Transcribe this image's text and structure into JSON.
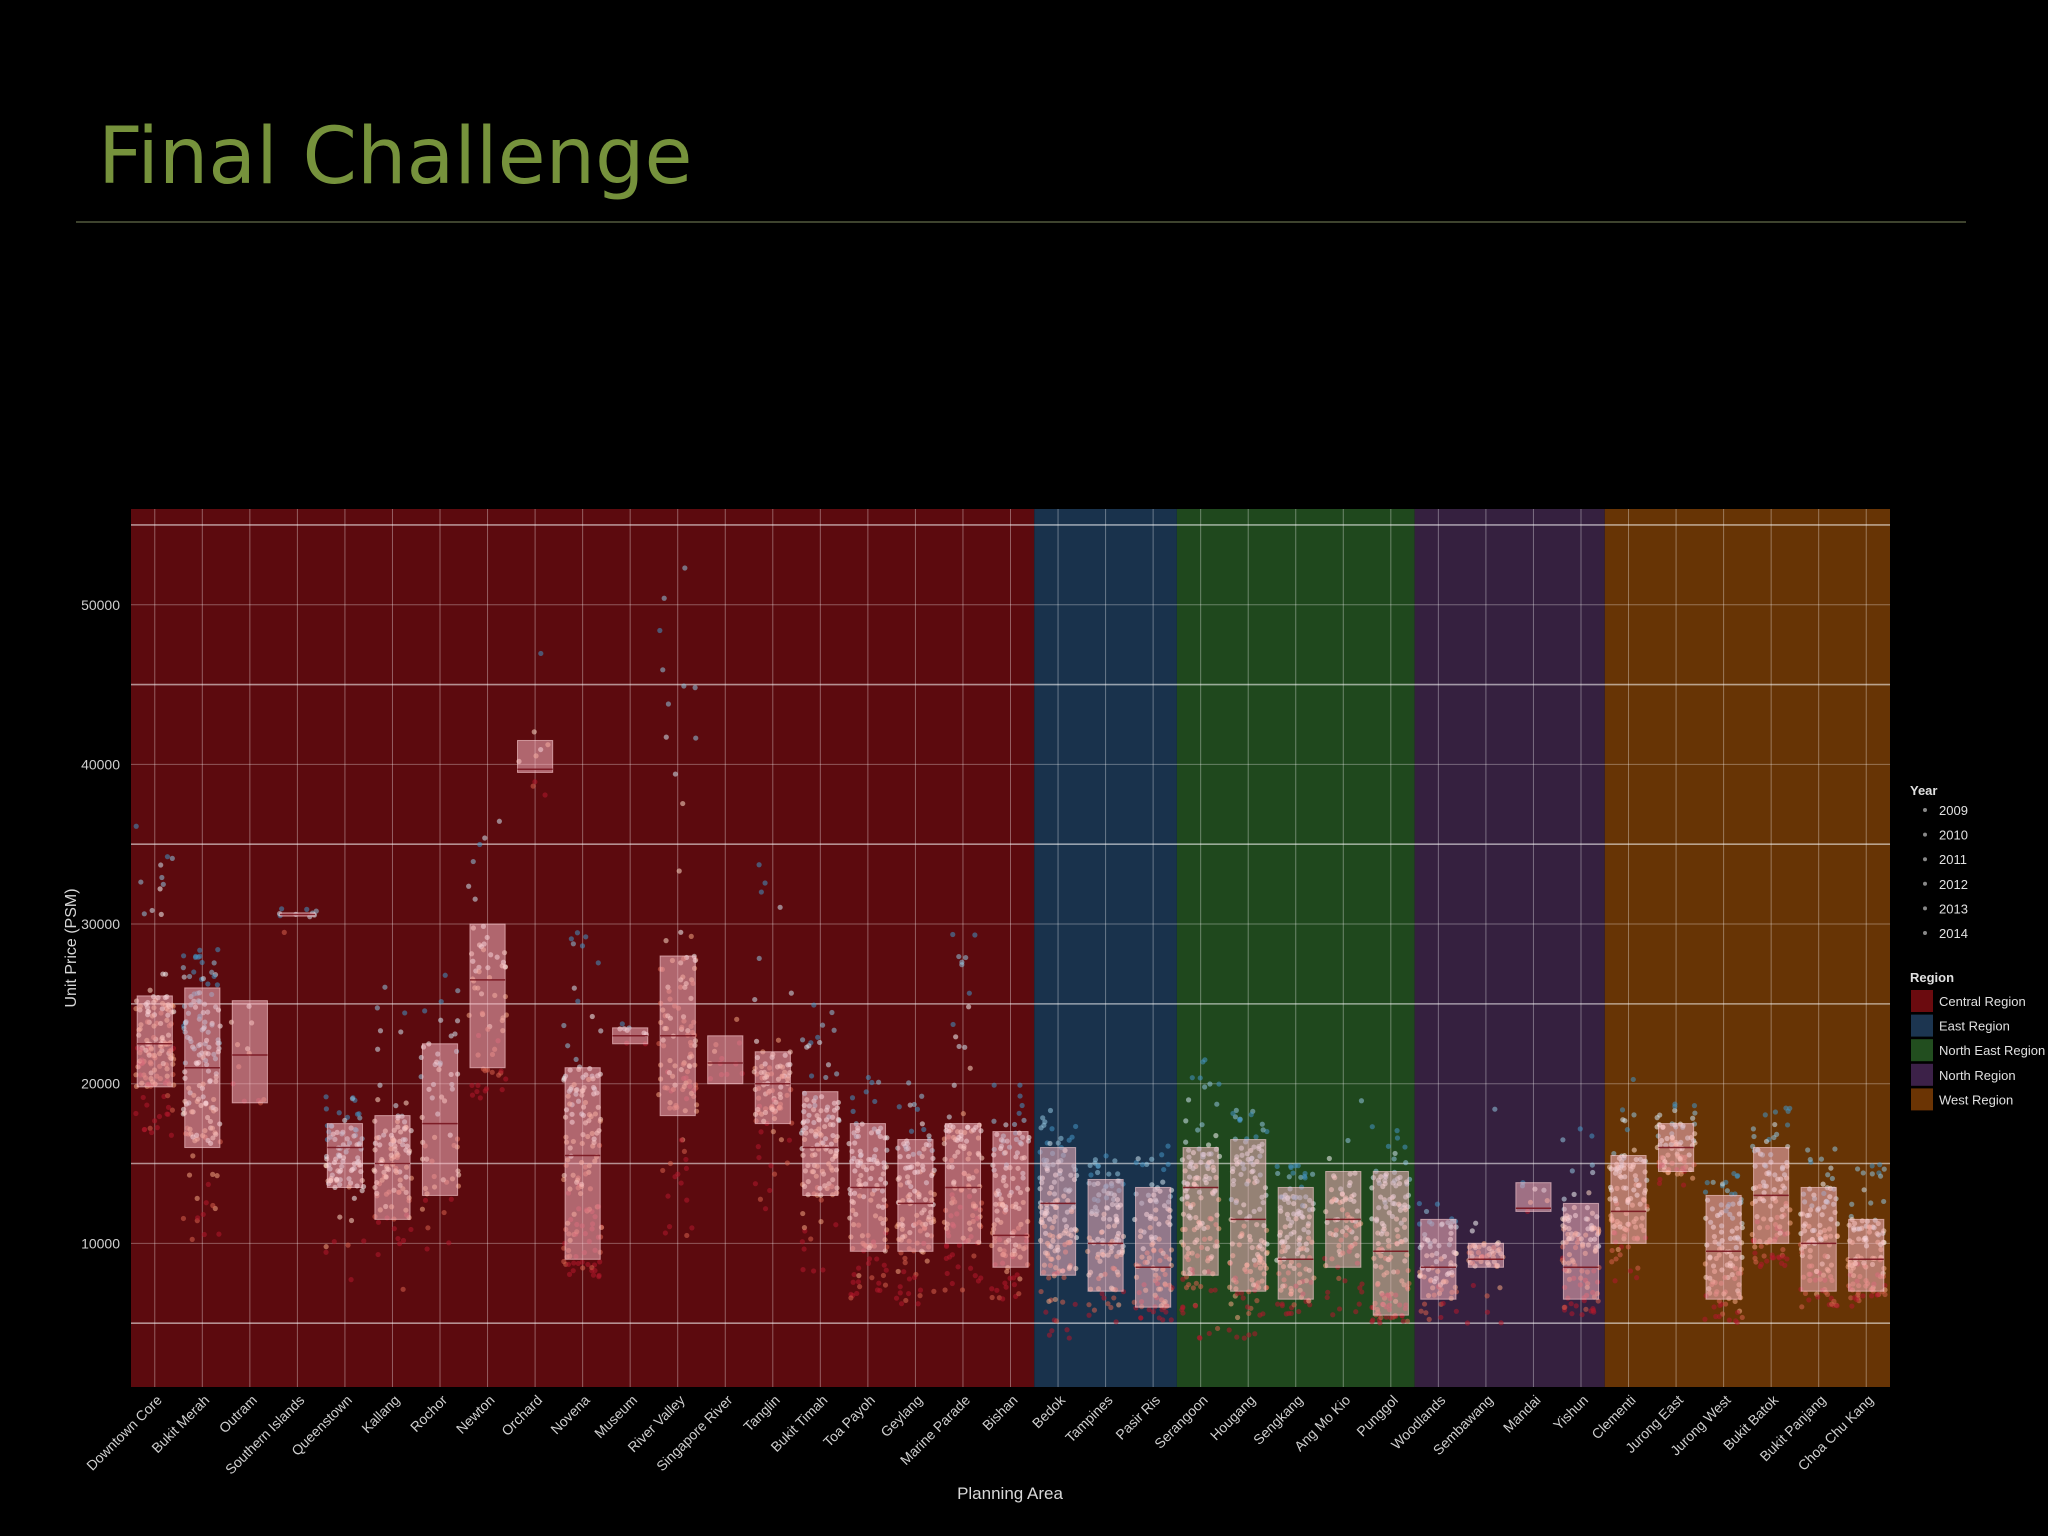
{
  "slide": {
    "title": "Final Challenge"
  },
  "chart_data": {
    "type": "scatter",
    "subtype": "jittered strip plot with box plots, shaded by region",
    "xlabel": "Planning Area",
    "ylabel": "Unit Price (PSM)",
    "ylim": [
      1000,
      56000
    ],
    "yticks": [
      10000,
      20000,
      30000,
      40000,
      50000
    ],
    "grid": true,
    "legend_position": "right",
    "legend_year": {
      "title": "Year",
      "entries": [
        "2009",
        "2010",
        "2011",
        "2012",
        "2013",
        "2014"
      ]
    },
    "legend_region": {
      "title": "Region",
      "entries": [
        {
          "name": "Central Region",
          "color": "#6b0b0f"
        },
        {
          "name": "East Region",
          "color": "#1c3550"
        },
        {
          "name": "North East Region",
          "color": "#224e1f"
        },
        {
          "name": "North Region",
          "color": "#3c2148"
        },
        {
          "name": "West Region",
          "color": "#6b3404"
        }
      ]
    },
    "region_bands": [
      {
        "name": "Central Region",
        "start": "Downtown Core",
        "end": "Bishan",
        "color": "#5c0a0e"
      },
      {
        "name": "East Region",
        "start": "Bedok",
        "end": "Pasir Ris",
        "color": "#19324c"
      },
      {
        "name": "North East Region",
        "start": "Serangoon",
        "end": "Punggol",
        "color": "#1f481d"
      },
      {
        "name": "North Region",
        "start": "Woodlands",
        "end": "Yishun",
        "color": "#35203f"
      },
      {
        "name": "West Region",
        "start": "Clementi",
        "end": "Choa Chu Kang",
        "color": "#673405"
      }
    ],
    "categories": [
      "Downtown Core",
      "Bukit Merah",
      "Outram",
      "Southern Islands",
      "Queenstown",
      "Kallang",
      "Rochor",
      "Newton",
      "Orchard",
      "Novena",
      "Museum",
      "River Valley",
      "Singapore River",
      "Tanglin",
      "Bukit Timah",
      "Toa Payoh",
      "Geylang",
      "Marine Parade",
      "Bishan",
      "Bedok",
      "Tampines",
      "Pasir Ris",
      "Serangoon",
      "Hougang",
      "Sengkang",
      "Ang Mo Kio",
      "Punggol",
      "Woodlands",
      "Sembawang",
      "Mandai",
      "Yishun",
      "Clementi",
      "Jurong East",
      "Jurong West",
      "Bukit Batok",
      "Bukit Panjang",
      "Choa Chu Kang"
    ],
    "boxes": [
      {
        "q1": 19800,
        "median": 22500,
        "q3": 25500,
        "lo": 16500,
        "hi": 36500,
        "density": 1.0
      },
      {
        "q1": 16000,
        "median": 21000,
        "q3": 26000,
        "lo": 9500,
        "hi": 28500,
        "density": 1.0
      },
      {
        "q1": 18800,
        "median": 21800,
        "q3": 25200,
        "lo": 18800,
        "hi": 27000,
        "density": 0.05
      },
      {
        "q1": 30500,
        "median": 30600,
        "q3": 30700,
        "lo": 28700,
        "hi": 31000,
        "density": 0.04
      },
      {
        "q1": 13500,
        "median": 16000,
        "q3": 17500,
        "lo": 7500,
        "hi": 19500,
        "density": 0.6
      },
      {
        "q1": 11500,
        "median": 15000,
        "q3": 18000,
        "lo": 7000,
        "hi": 26500,
        "density": 0.7
      },
      {
        "q1": 13000,
        "median": 17500,
        "q3": 22500,
        "lo": 9500,
        "hi": 27000,
        "density": 0.35
      },
      {
        "q1": 21000,
        "median": 26500,
        "q3": 30000,
        "lo": 19000,
        "hi": 40000,
        "density": 0.4
      },
      {
        "q1": 39500,
        "median": 39700,
        "q3": 41500,
        "lo": 37500,
        "hi": 47500,
        "density": 0.03
      },
      {
        "q1": 9000,
        "median": 15500,
        "q3": 21000,
        "lo": 7500,
        "hi": 30000,
        "density": 1.0
      },
      {
        "q1": 22500,
        "median": 23000,
        "q3": 23500,
        "lo": 22500,
        "hi": 23800,
        "density": 0.03
      },
      {
        "q1": 18000,
        "median": 23000,
        "q3": 28000,
        "lo": 10000,
        "hi": 54000,
        "density": 0.8
      },
      {
        "q1": 20000,
        "median": 21300,
        "q3": 23000,
        "lo": 20000,
        "hi": 31000,
        "density": 0.05
      },
      {
        "q1": 17500,
        "median": 20000,
        "q3": 22000,
        "lo": 12000,
        "hi": 34500,
        "density": 0.6
      },
      {
        "q1": 13000,
        "median": 16000,
        "q3": 19500,
        "lo": 8000,
        "hi": 25000,
        "density": 0.8
      },
      {
        "q1": 9500,
        "median": 13500,
        "q3": 17500,
        "lo": 6500,
        "hi": 21000,
        "density": 0.8
      },
      {
        "q1": 9500,
        "median": 12500,
        "q3": 16500,
        "lo": 6000,
        "hi": 21000,
        "density": 0.8
      },
      {
        "q1": 10000,
        "median": 13500,
        "q3": 17500,
        "lo": 7000,
        "hi": 29500,
        "density": 0.8
      },
      {
        "q1": 8500,
        "median": 10500,
        "q3": 17000,
        "lo": 6500,
        "hi": 20000,
        "density": 0.8
      },
      {
        "q1": 8000,
        "median": 12500,
        "q3": 16000,
        "lo": 4000,
        "hi": 19000,
        "density": 0.9
      },
      {
        "q1": 7000,
        "median": 10000,
        "q3": 14000,
        "lo": 5000,
        "hi": 15500,
        "density": 0.7
      },
      {
        "q1": 6000,
        "median": 8500,
        "q3": 13500,
        "lo": 5000,
        "hi": 16500,
        "density": 0.7
      },
      {
        "q1": 8000,
        "median": 13500,
        "q3": 16000,
        "lo": 4000,
        "hi": 21500,
        "density": 0.9
      },
      {
        "q1": 7000,
        "median": 11500,
        "q3": 16500,
        "lo": 4000,
        "hi": 18500,
        "density": 0.9
      },
      {
        "q1": 6500,
        "median": 9000,
        "q3": 13500,
        "lo": 5500,
        "hi": 15000,
        "density": 0.8
      },
      {
        "q1": 8500,
        "median": 11500,
        "q3": 14500,
        "lo": 5500,
        "hi": 20500,
        "density": 0.5
      },
      {
        "q1": 5500,
        "median": 9500,
        "q3": 14500,
        "lo": 5000,
        "hi": 17500,
        "density": 0.9
      },
      {
        "q1": 6500,
        "median": 8500,
        "q3": 11500,
        "lo": 5000,
        "hi": 12500,
        "density": 0.5
      },
      {
        "q1": 8500,
        "median": 9000,
        "q3": 10000,
        "lo": 5000,
        "hi": 19000,
        "density": 0.3
      },
      {
        "q1": 12000,
        "median": 12200,
        "q3": 13800,
        "lo": 12000,
        "hi": 13800,
        "density": 0.02
      },
      {
        "q1": 6500,
        "median": 8500,
        "q3": 12500,
        "lo": 5500,
        "hi": 17500,
        "density": 0.7
      },
      {
        "q1": 10000,
        "median": 12000,
        "q3": 15500,
        "lo": 7500,
        "hi": 20500,
        "density": 0.7
      },
      {
        "q1": 14500,
        "median": 16000,
        "q3": 17500,
        "lo": 13500,
        "hi": 19000,
        "density": 0.5
      },
      {
        "q1": 6500,
        "median": 9500,
        "q3": 13000,
        "lo": 5000,
        "hi": 14500,
        "density": 0.7
      },
      {
        "q1": 10000,
        "median": 13000,
        "q3": 16000,
        "lo": 8500,
        "hi": 18500,
        "density": 0.7
      },
      {
        "q1": 7000,
        "median": 10000,
        "q3": 13500,
        "lo": 6000,
        "hi": 16000,
        "density": 0.7
      },
      {
        "q1": 7000,
        "median": 9000,
        "q3": 11500,
        "lo": 6000,
        "hi": 15000,
        "density": 0.7
      }
    ]
  }
}
